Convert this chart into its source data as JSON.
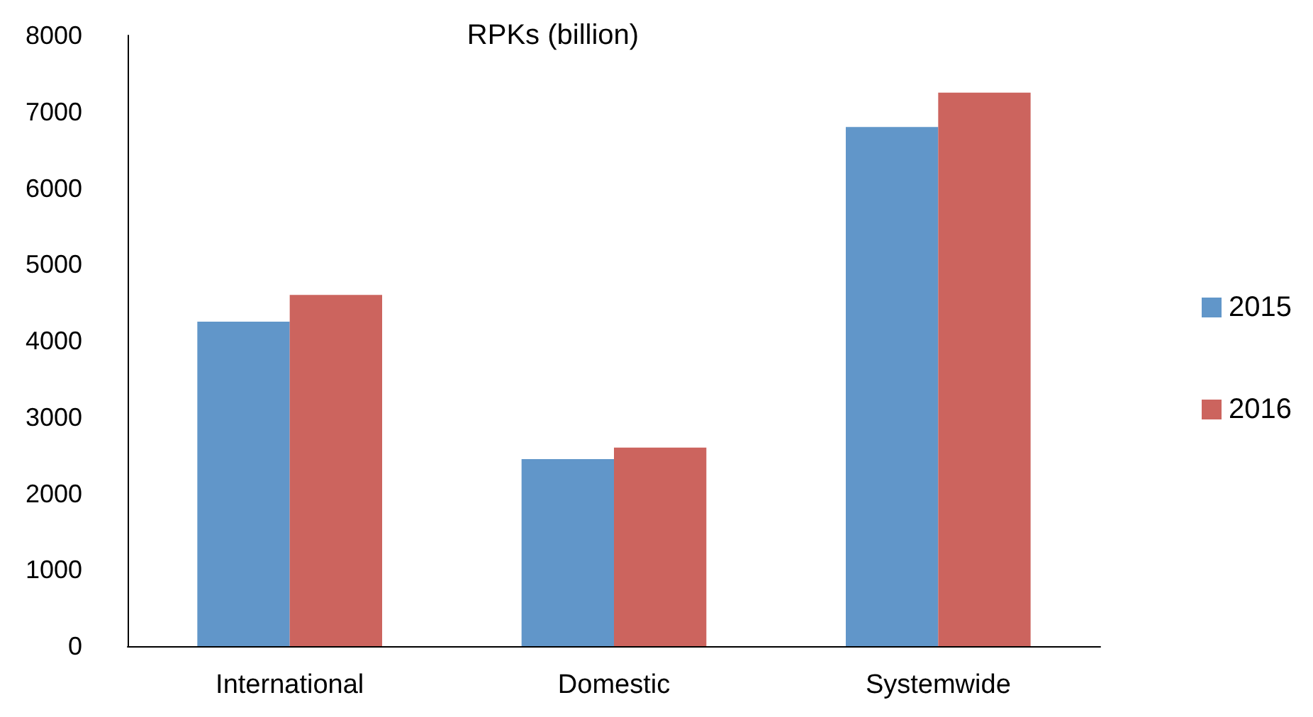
{
  "chart_data": {
    "type": "bar",
    "title": "RPKs (billion)",
    "categories": [
      "International",
      "Domestic",
      "Systemwide"
    ],
    "series": [
      {
        "name": "2015",
        "color": "#6196c9",
        "values": [
          4250,
          2450,
          6800
        ]
      },
      {
        "name": "2016",
        "color": "#cc645e",
        "values": [
          4600,
          2600,
          7250
        ]
      }
    ],
    "ylim": [
      0,
      8000
    ],
    "yticks": [
      0,
      1000,
      2000,
      3000,
      4000,
      5000,
      6000,
      7000,
      8000
    ],
    "grid": false,
    "legend": "right"
  }
}
